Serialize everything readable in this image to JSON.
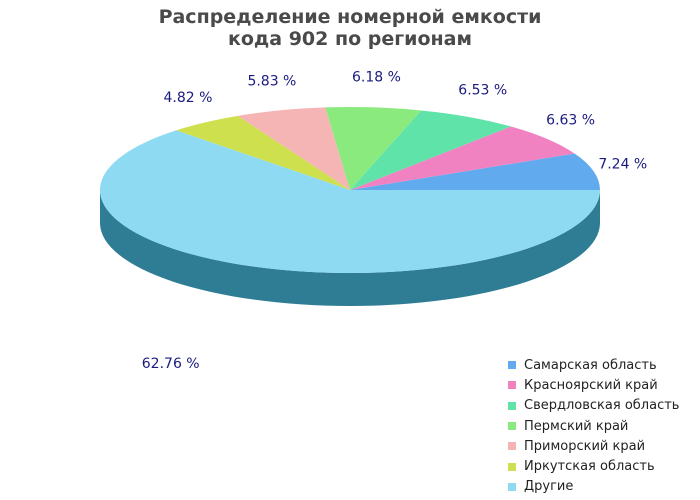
{
  "chart_data": {
    "type": "pie",
    "style": "3d",
    "title_lines": [
      "Распределение номерной емкости",
      "кода 902 по регионам"
    ],
    "label_suffix": " %",
    "legend_position": "bottom-right",
    "slices": [
      {
        "label": "Самарская область",
        "value": 7.24,
        "value_label": "7.24",
        "color": "#62aaee"
      },
      {
        "label": "Красноярский край",
        "value": 6.63,
        "value_label": "6.63",
        "color": "#f082c2"
      },
      {
        "label": "Свердловская область",
        "value": 6.53,
        "value_label": "6.53",
        "color": "#5fe3a9"
      },
      {
        "label": "Пермский край",
        "value": 6.18,
        "value_label": "6.18",
        "color": "#8aea7e"
      },
      {
        "label": "Приморский край",
        "value": 5.83,
        "value_label": "5.83",
        "color": "#f5b5b5"
      },
      {
        "label": "Иркутская область",
        "value": 4.82,
        "value_label": "4.82",
        "color": "#cfe04f"
      },
      {
        "label": "Другие",
        "value": 62.76,
        "value_label": "62.76",
        "color": "#8ddaf2"
      }
    ],
    "colors": {
      "side": "#2e7d95",
      "label_text": "#1a1a80",
      "title_text": "#4a4a4a"
    }
  }
}
